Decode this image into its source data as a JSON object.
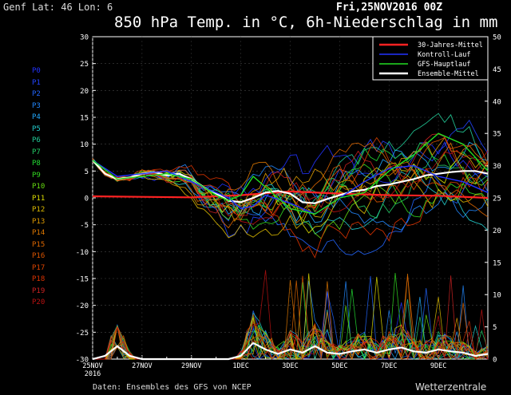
{
  "header": {
    "location": "Genf   Lat: 46 Lon: 6",
    "run": "Fri,25NOV2016 00Z",
    "title": "850 hPa Temp. in °C, 6h-Niederschlag in mm"
  },
  "footer": {
    "source": "Daten: Ensembles des GFS von NCEP",
    "brand": "Wetterzentrale"
  },
  "members": [
    {
      "label": "P0",
      "color": "#2233ff"
    },
    {
      "label": "P1",
      "color": "#2244ff"
    },
    {
      "label": "P2",
      "color": "#2266ff"
    },
    {
      "label": "P3",
      "color": "#2288ff"
    },
    {
      "label": "P4",
      "color": "#22aaff"
    },
    {
      "label": "P5",
      "color": "#22cccc"
    },
    {
      "label": "P6",
      "color": "#22cc99"
    },
    {
      "label": "P7",
      "color": "#22cc66"
    },
    {
      "label": "P8",
      "color": "#22dd33"
    },
    {
      "label": "P9",
      "color": "#33dd22"
    },
    {
      "label": "P10",
      "color": "#66dd11"
    },
    {
      "label": "P11",
      "color": "#dddd00"
    },
    {
      "label": "P12",
      "color": "#ddbb00"
    },
    {
      "label": "P13",
      "color": "#dd9900"
    },
    {
      "label": "P14",
      "color": "#dd7700"
    },
    {
      "label": "P15",
      "color": "#dd6600"
    },
    {
      "label": "P16",
      "color": "#dd5500"
    },
    {
      "label": "P17",
      "color": "#dd4400"
    },
    {
      "label": "P18",
      "color": "#dd3300"
    },
    {
      "label": "P19",
      "color": "#cc2222"
    },
    {
      "label": "P20",
      "color": "#bb1111"
    }
  ],
  "chart_data": {
    "type": "line",
    "title": "850 hPa Temp. in °C, 6h-Niederschlag in mm",
    "x_ticks": [
      "25NOV",
      "27NOV",
      "29NOV",
      "1DEC",
      "3DEC",
      "5DEC",
      "7DEC",
      "9DEC"
    ],
    "x_tick_sub": "2016",
    "xlim_days": [
      0,
      16
    ],
    "y_left": {
      "label": "850 hPa Temp. °C",
      "range": [
        -30,
        30
      ],
      "ticks": [
        30,
        25,
        20,
        15,
        10,
        5,
        0,
        -5,
        -10,
        -15,
        -20,
        -25,
        -30
      ]
    },
    "y_right": {
      "label": "6h-Niederschlag mm",
      "range": [
        0,
        50
      ],
      "ticks": [
        50,
        45,
        40,
        35,
        30,
        25,
        20,
        15,
        10,
        5,
        0
      ]
    },
    "legend": {
      "position": "top-right",
      "entries": [
        {
          "name": "30-Jahres-Mittel",
          "color": "#ff2222"
        },
        {
          "name": "Kontroll-Lauf",
          "color": "#2233ff"
        },
        {
          "name": "GFS-Hauptlauf",
          "color": "#22dd22"
        },
        {
          "name": "Ensemble-Mittel",
          "color": "#ffffff"
        }
      ]
    },
    "series": [
      {
        "name": "30-Jahres-Mittel",
        "axis": "left",
        "x": [
          0,
          2,
          4,
          6,
          8,
          10,
          12,
          14,
          16
        ],
        "values": [
          0.3,
          0.2,
          0.1,
          0.5,
          1.2,
          0.8,
          0.5,
          0.4,
          0.0
        ]
      },
      {
        "name": "Ensemble-Mittel",
        "axis": "left",
        "x": [
          0,
          0.5,
          1,
          1.5,
          2,
          2.5,
          3,
          3.5,
          4,
          4.5,
          5,
          5.5,
          6,
          6.5,
          7,
          7.5,
          8,
          8.5,
          9,
          9.5,
          10,
          10.5,
          11,
          11.5,
          12,
          12.5,
          13,
          13.5,
          14,
          14.5,
          15,
          15.5,
          16
        ],
        "values": [
          7,
          4.5,
          3.5,
          3.8,
          4.5,
          4.8,
          4.2,
          4.5,
          3.5,
          2.0,
          0.8,
          -0.5,
          -0.8,
          0.0,
          1.0,
          1.3,
          0.8,
          -0.8,
          -1.0,
          -0.2,
          0.5,
          1.2,
          1.5,
          2.2,
          2.5,
          3.0,
          3.5,
          4.2,
          4.5,
          4.8,
          5.0,
          5.0,
          4.5
        ]
      },
      {
        "name": "Kontroll-Lauf",
        "axis": "left",
        "x": [
          0,
          1,
          2,
          3,
          4,
          5,
          5.5,
          6,
          6.5,
          7,
          8,
          9,
          10,
          11,
          12,
          13,
          14,
          15,
          16
        ],
        "values": [
          7,
          4.0,
          4.5,
          5.0,
          3.0,
          1.0,
          0.0,
          -2.0,
          -1.5,
          0.5,
          -1.0,
          -3.0,
          0.0,
          3.0,
          5.5,
          6.0,
          4.0,
          3.0,
          1.0
        ]
      },
      {
        "name": "GFS-Hauptlauf",
        "axis": "left",
        "x": [
          0,
          1,
          2,
          3,
          4,
          5,
          5.5,
          6,
          6.5,
          7,
          8,
          9,
          10,
          11,
          12,
          13,
          14,
          15,
          16
        ],
        "values": [
          7,
          3.5,
          4.0,
          4.5,
          3.5,
          0.5,
          -0.5,
          0.5,
          4.0,
          2.0,
          -2.0,
          -3.0,
          0.0,
          1.0,
          5.0,
          8.0,
          12.0,
          10.0,
          5.0
        ]
      },
      {
        "name": "Niederschlag Ensemble-Mittel",
        "axis": "right",
        "x": [
          0,
          0.5,
          1,
          1.5,
          2,
          2.5,
          3,
          4,
          5,
          5.5,
          6,
          6.5,
          7,
          7.5,
          8,
          8.5,
          9,
          9.5,
          10,
          10.5,
          11,
          11.5,
          12,
          12.5,
          13,
          13.5,
          14,
          14.5,
          15,
          15.5,
          16
        ],
        "values": [
          0,
          0.5,
          2.0,
          0.5,
          0,
          0,
          0,
          0,
          0,
          0,
          0.5,
          2.5,
          1.5,
          0.8,
          1.5,
          1.0,
          2.0,
          1.0,
          0.8,
          1.2,
          1.5,
          1.0,
          1.5,
          1.8,
          1.2,
          1.0,
          1.5,
          1.2,
          1.0,
          0.5,
          0.8
        ]
      }
    ]
  }
}
